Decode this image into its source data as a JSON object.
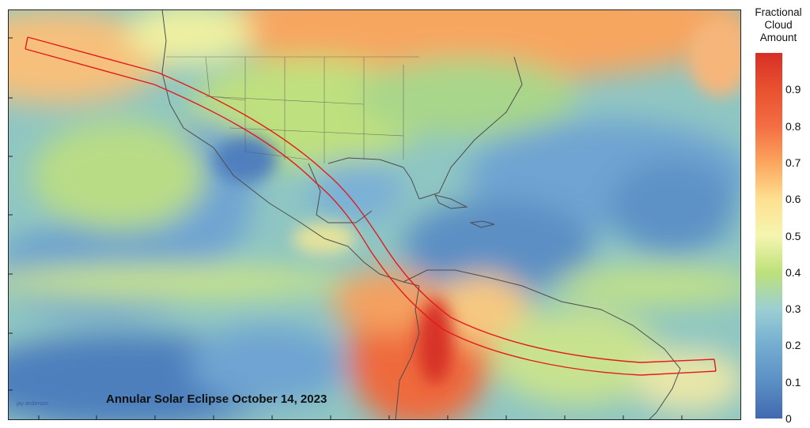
{
  "map": {
    "title": "Annular Solar Eclipse October 14, 2023",
    "credit": "jay anderson"
  },
  "legend": {
    "title_lines": [
      "Fractional",
      "Cloud",
      "Amount"
    ],
    "ticks": [
      "0.9",
      "0.8",
      "0.7",
      "0.6",
      "0.5",
      "0.4",
      "0.3",
      "0.2",
      "0.1",
      "0"
    ],
    "colors": {
      "high": "#d73027",
      "mid_orange": "#f46d43",
      "mid_yellow": "#fee090",
      "mid_green": "#bde17a",
      "low_light_blue": "#74add1",
      "low": "#4169b0"
    }
  },
  "eclipse_path": {
    "color": "#e31a1c"
  }
}
